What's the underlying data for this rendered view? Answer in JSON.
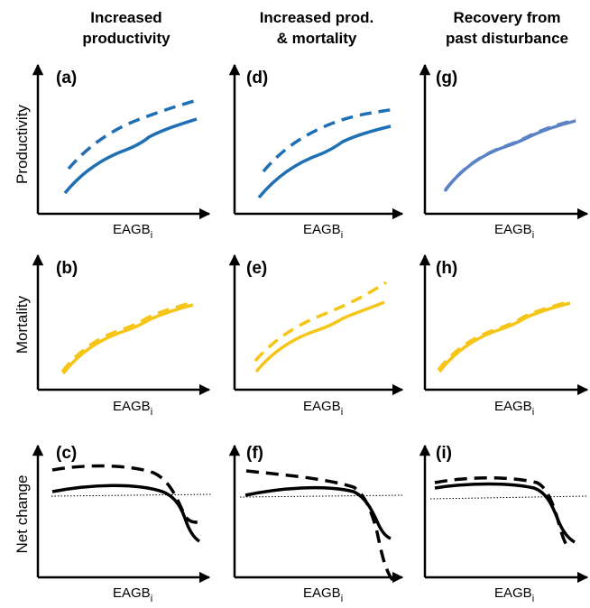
{
  "columns": [
    {
      "title_lines": [
        "Increased",
        "productivity"
      ]
    },
    {
      "title_lines": [
        "Increased prod.",
        "& mortality"
      ]
    },
    {
      "title_lines": [
        "Recovery from",
        "past disturbance"
      ]
    }
  ],
  "rows": [
    {
      "label": "Productivity"
    },
    {
      "label": "Mortality"
    },
    {
      "label": "Net change"
    }
  ],
  "x_axis_label": {
    "main": "EAGB",
    "subscript": "i"
  },
  "panels": [
    {
      "label": "(a)"
    },
    {
      "label": "(d)"
    },
    {
      "label": "(g)"
    },
    {
      "label": "(b)"
    },
    {
      "label": "(e)"
    },
    {
      "label": "(h)"
    },
    {
      "label": "(c)"
    },
    {
      "label": "(f)"
    },
    {
      "label": "(i)"
    }
  ],
  "colors": {
    "productivity_a_d": "#1f6fb4",
    "productivity_g": "#5b82c4",
    "mortality": "#f5c518",
    "net_change": "#000000",
    "axes": "#000000"
  }
}
